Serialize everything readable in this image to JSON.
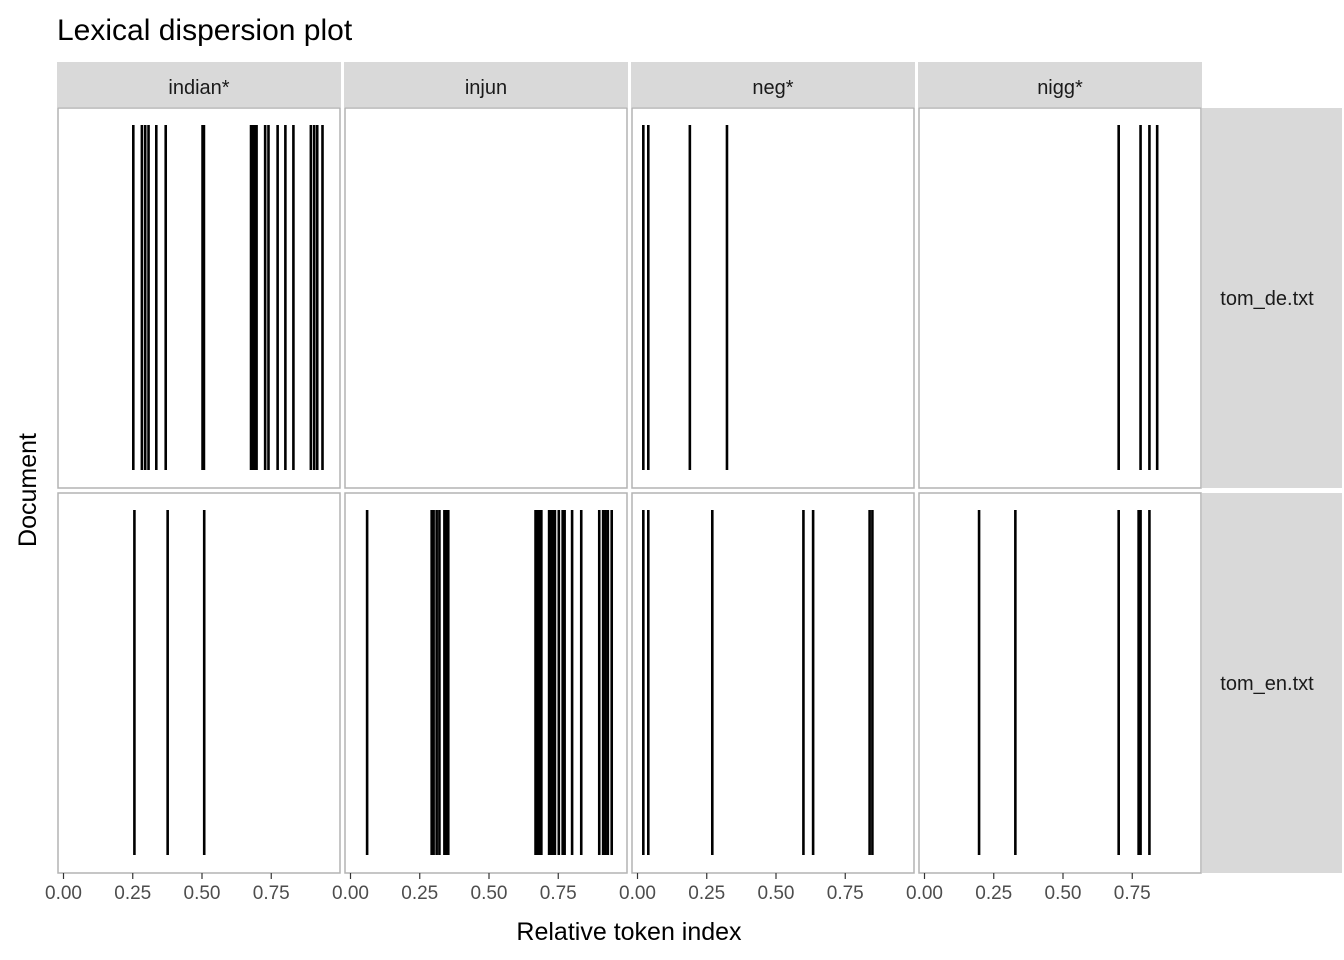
{
  "chart_data": {
    "type": "scatter",
    "mark": "vertical-line",
    "title": "Lexical dispersion plot",
    "xlabel": "Relative token index",
    "ylabel": "Document",
    "xlim": [
      0,
      1
    ],
    "x_ticks": [
      0,
      0.25,
      0.5,
      0.75
    ],
    "x_tick_labels": [
      "0.00",
      "0.25",
      "0.50",
      "0.75"
    ],
    "facet_columns": [
      "indian*",
      "injun",
      "neg*",
      "nigg*"
    ],
    "facet_rows": [
      "tom_de.txt",
      "tom_en.txt"
    ],
    "panels": [
      {
        "row": "tom_de.txt",
        "column": "indian*",
        "x": [
          0.252,
          0.283,
          0.295,
          0.307,
          0.335,
          0.369,
          0.502,
          0.507,
          0.677,
          0.684,
          0.691,
          0.697,
          0.728,
          0.74,
          0.773,
          0.801,
          0.83,
          0.893,
          0.905,
          0.916,
          0.935
        ]
      },
      {
        "row": "tom_de.txt",
        "column": "injun",
        "x": []
      },
      {
        "row": "tom_de.txt",
        "column": "neg*",
        "x": [
          0.021,
          0.039,
          0.189,
          0.323
        ]
      },
      {
        "row": "tom_de.txt",
        "column": "nigg*",
        "x": [
          0.701,
          0.78,
          0.812,
          0.84
        ]
      },
      {
        "row": "tom_en.txt",
        "column": "indian*",
        "x": [
          0.256,
          0.376,
          0.508
        ]
      },
      {
        "row": "tom_en.txt",
        "column": "injun",
        "x": [
          0.06,
          0.293,
          0.3,
          0.311,
          0.321,
          0.339,
          0.346,
          0.353,
          0.668,
          0.675,
          0.682,
          0.689,
          0.717,
          0.724,
          0.731,
          0.738,
          0.752,
          0.766,
          0.773,
          0.8,
          0.833,
          0.898,
          0.912,
          0.92,
          0.929,
          0.943
        ]
      },
      {
        "row": "tom_en.txt",
        "column": "neg*",
        "x": [
          0.021,
          0.039,
          0.27,
          0.599,
          0.634,
          0.838,
          0.848
        ]
      },
      {
        "row": "tom_en.txt",
        "column": "nigg*",
        "x": [
          0.197,
          0.328,
          0.701,
          0.773,
          0.78,
          0.812
        ]
      }
    ],
    "grid": false,
    "legend": "none"
  },
  "colors": {
    "bar": "#000000",
    "strip_fill": "#d9d9d9",
    "panel_border": "#b3b3b3",
    "tick_text": "#4d4d4d"
  }
}
